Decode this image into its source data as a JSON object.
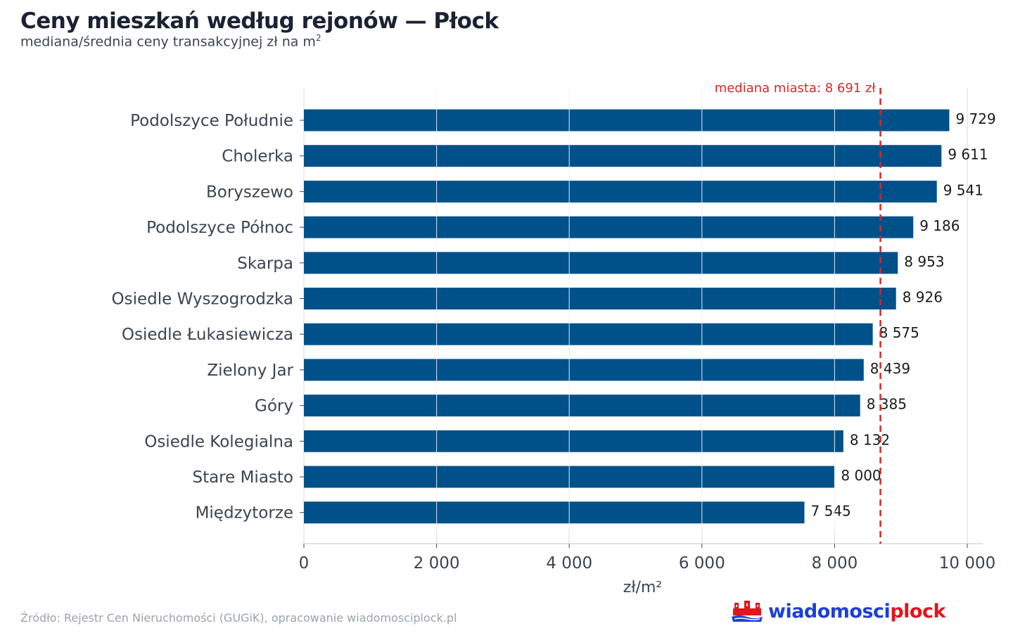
{
  "header": {
    "title": "Ceny mieszkań według rejonów — Płock",
    "subtitle": "mediana/średnia ceny transakcyjnej zł na m",
    "subtitle_sup": "2"
  },
  "chart_data": {
    "type": "bar",
    "orientation": "horizontal",
    "categories": [
      "Podolszyce Południe",
      "Cholerka",
      "Boryszewo",
      "Podolszyce Północ",
      "Skarpa",
      "Osiedle Wyszogrodzka",
      "Osiedle Łukasiewicza",
      "Zielony Jar",
      "Góry",
      "Osiedle Kolegialna",
      "Stare Miasto",
      "Międzytorze"
    ],
    "values": [
      9729,
      9611,
      9541,
      9186,
      8953,
      8926,
      8575,
      8439,
      8385,
      8132,
      8000,
      7545
    ],
    "value_labels": [
      "9 729",
      "9 611",
      "9 541",
      "9 186",
      "8 953",
      "8 926",
      "8 575",
      "8 439",
      "8 385",
      "8 132",
      "8 000",
      "7 545"
    ],
    "xlabel": "zł/m²",
    "xlim": [
      0,
      10000
    ],
    "xticks": [
      0,
      2000,
      4000,
      6000,
      8000,
      10000
    ],
    "xtick_labels": [
      "0",
      "2 000",
      "4 000",
      "6 000",
      "8 000",
      "10 000"
    ],
    "reference_line": {
      "value": 8691,
      "label": "mediana miasta: 8 691 zł",
      "color": "#d62728",
      "style": "dashed"
    },
    "bar_color": "#005189",
    "grid": true
  },
  "footer": {
    "source": "Źródło: Rejestr Cen Nieruchomości (GUGiK), opracowanie wiadomosciplock.pl",
    "logo_text_a": "wiadomosci",
    "logo_text_b": "plock"
  }
}
